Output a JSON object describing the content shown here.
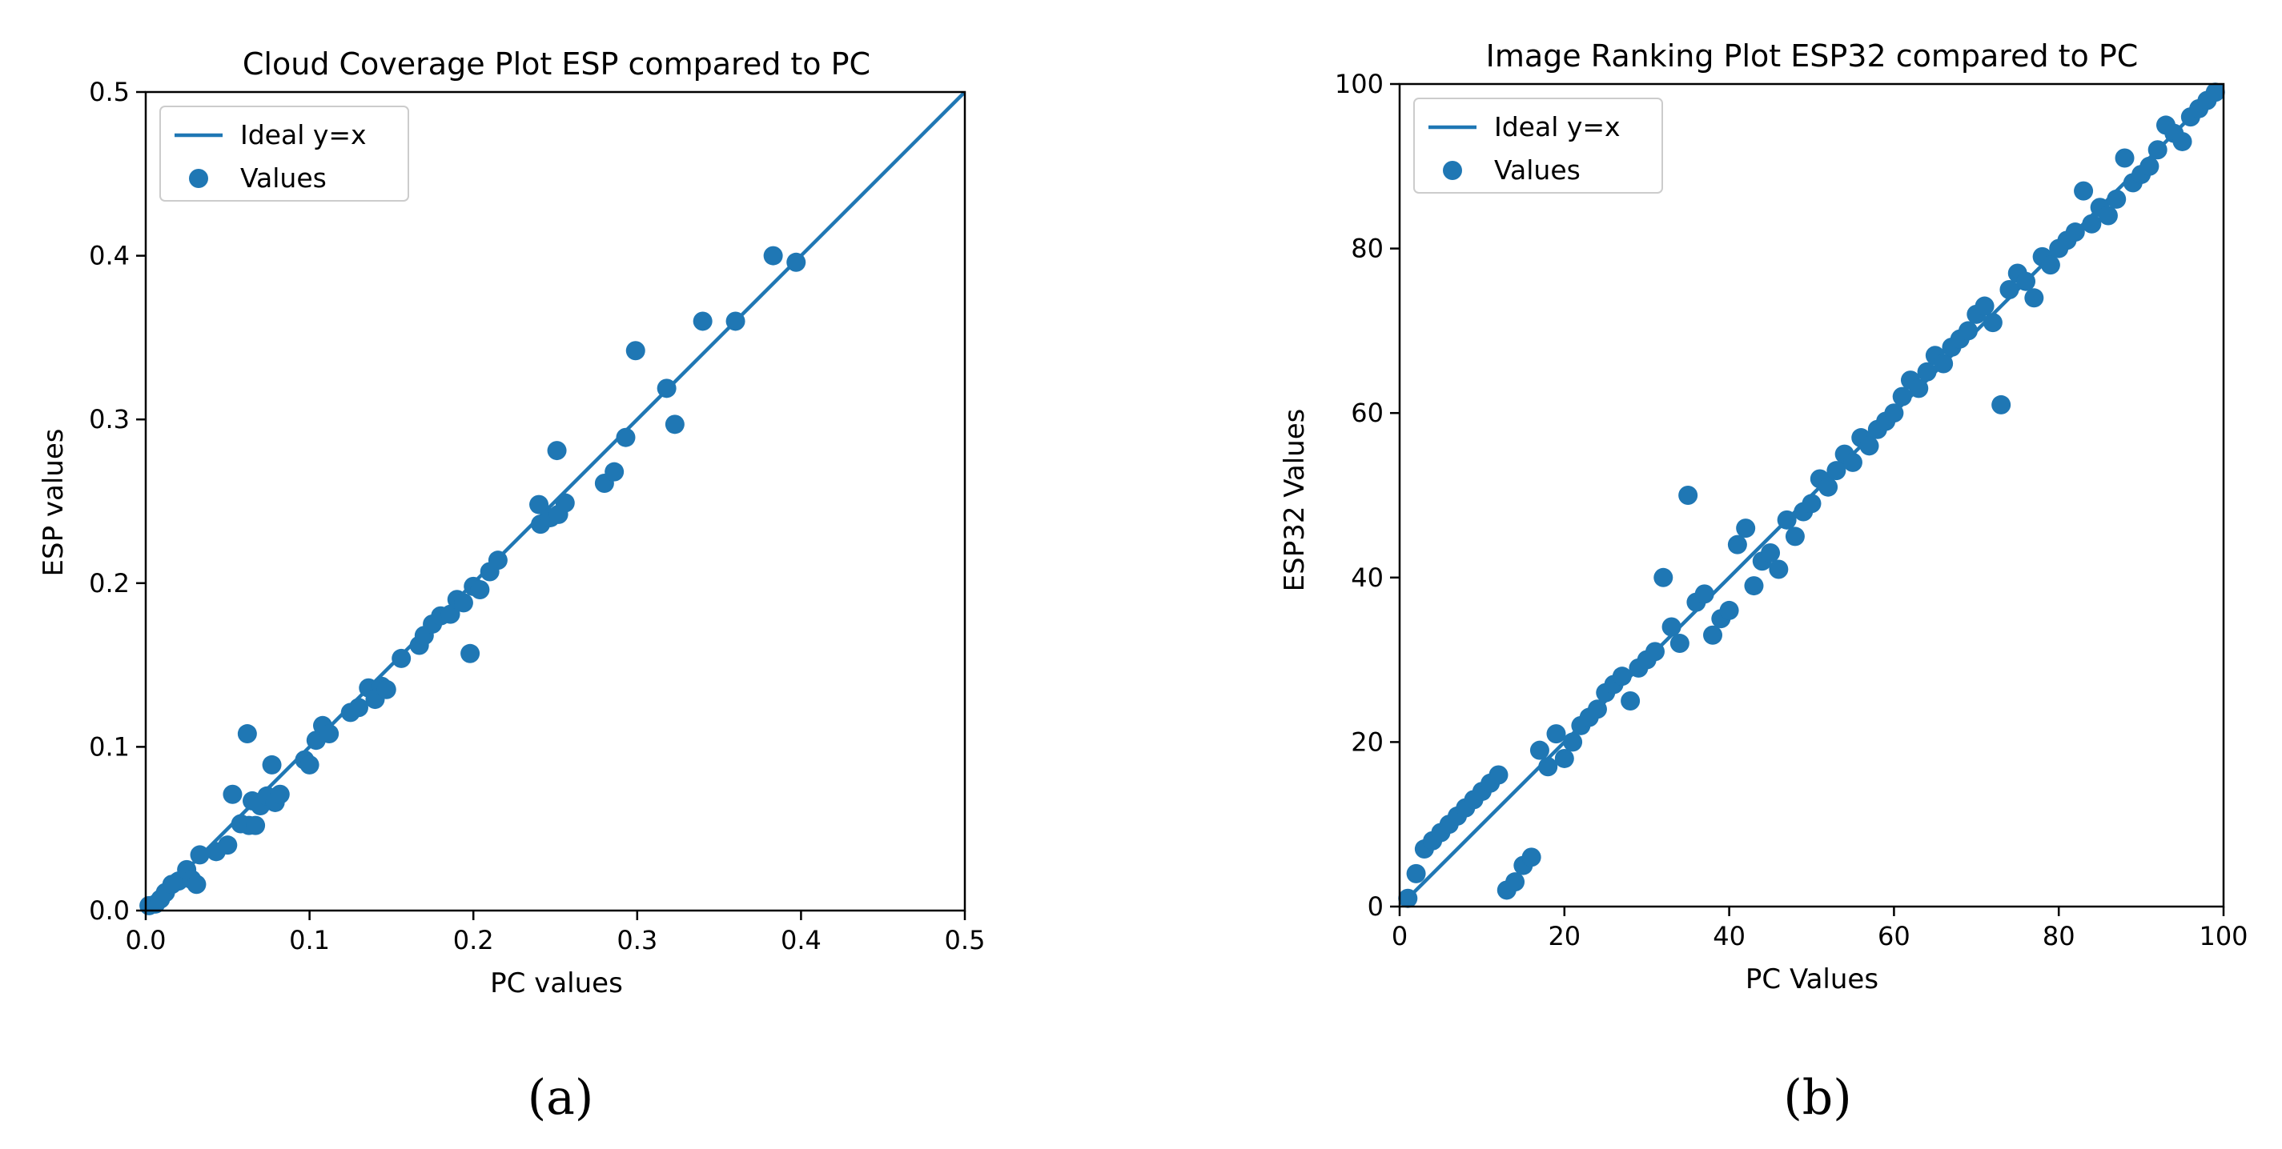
{
  "colors": {
    "series": "#1f77b4",
    "axis": "#000000",
    "legend_border": "#cccccc"
  },
  "chart_data": [
    {
      "type": "scatter",
      "panel_label": "(a)",
      "title": "Cloud Coverage Plot ESP compared to PC",
      "xlabel": "PC values",
      "ylabel": "ESP values",
      "xlim": [
        0,
        0.5
      ],
      "ylim": [
        0,
        0.5
      ],
      "xticks": [
        "0.0",
        "0.1",
        "0.2",
        "0.3",
        "0.4",
        "0.5"
      ],
      "yticks": [
        "0.0",
        "0.1",
        "0.2",
        "0.3",
        "0.4",
        "0.5"
      ],
      "legend_position": "top-left",
      "series": [
        {
          "name": "Ideal y=x",
          "kind": "line",
          "x": [
            0,
            0.5
          ],
          "y": [
            0,
            0.5
          ]
        },
        {
          "name": "Values",
          "kind": "scatter",
          "x": [
            0.002,
            0.006,
            0.009,
            0.012,
            0.016,
            0.02,
            0.025,
            0.028,
            0.031,
            0.033,
            0.043,
            0.05,
            0.053,
            0.058,
            0.062,
            0.063,
            0.065,
            0.067,
            0.07,
            0.074,
            0.077,
            0.079,
            0.082,
            0.097,
            0.1,
            0.104,
            0.108,
            0.112,
            0.125,
            0.13,
            0.136,
            0.14,
            0.144,
            0.147,
            0.156,
            0.167,
            0.17,
            0.175,
            0.18,
            0.186,
            0.19,
            0.194,
            0.198,
            0.2,
            0.204,
            0.21,
            0.215,
            0.24,
            0.241,
            0.247,
            0.251,
            0.252,
            0.256,
            0.28,
            0.286,
            0.293,
            0.299,
            0.318,
            0.323,
            0.34,
            0.36,
            0.383,
            0.397
          ],
          "y": [
            0.003,
            0.004,
            0.007,
            0.011,
            0.016,
            0.018,
            0.025,
            0.019,
            0.016,
            0.034,
            0.036,
            0.04,
            0.071,
            0.053,
            0.108,
            0.052,
            0.067,
            0.052,
            0.064,
            0.07,
            0.089,
            0.066,
            0.071,
            0.092,
            0.089,
            0.104,
            0.113,
            0.108,
            0.121,
            0.124,
            0.136,
            0.129,
            0.137,
            0.135,
            0.154,
            0.162,
            0.168,
            0.175,
            0.18,
            0.181,
            0.19,
            0.188,
            0.157,
            0.198,
            0.196,
            0.207,
            0.214,
            0.248,
            0.236,
            0.24,
            0.281,
            0.242,
            0.249,
            0.261,
            0.268,
            0.289,
            0.342,
            0.319,
            0.297,
            0.36,
            0.36,
            0.4,
            0.396
          ]
        }
      ]
    },
    {
      "type": "scatter",
      "panel_label": "(b)",
      "title": "Image Ranking Plot ESP32 compared to PC",
      "xlabel": "PC Values",
      "ylabel": "ESP32 Values",
      "xlim": [
        0,
        100
      ],
      "ylim": [
        0,
        100
      ],
      "xticks": [
        "0",
        "20",
        "40",
        "60",
        "80",
        "100"
      ],
      "yticks": [
        "0",
        "20",
        "40",
        "60",
        "80",
        "100"
      ],
      "legend_position": "top-left",
      "series": [
        {
          "name": "Ideal y=x",
          "kind": "line",
          "x": [
            1,
            100
          ],
          "y": [
            1,
            100
          ]
        },
        {
          "name": "Values",
          "kind": "scatter",
          "x": [
            1,
            2,
            3,
            4,
            5,
            6,
            7,
            8,
            9,
            10,
            11,
            12,
            13,
            14,
            15,
            16,
            17,
            18,
            19,
            20,
            21,
            22,
            23,
            24,
            25,
            26,
            27,
            28,
            29,
            30,
            31,
            32,
            33,
            34,
            35,
            36,
            37,
            38,
            39,
            40,
            41,
            42,
            43,
            44,
            45,
            46,
            47,
            48,
            49,
            50,
            51,
            52,
            53,
            54,
            55,
            56,
            57,
            58,
            59,
            60,
            61,
            62,
            63,
            64,
            65,
            66,
            67,
            68,
            69,
            70,
            71,
            72,
            73,
            74,
            75,
            76,
            77,
            78,
            79,
            80,
            81,
            82,
            83,
            84,
            85,
            86,
            87,
            88,
            89,
            90,
            91,
            92,
            93,
            94,
            95,
            96,
            97,
            98,
            99
          ],
          "y": [
            1,
            4,
            7,
            8,
            9,
            10,
            11,
            12,
            13,
            14,
            15,
            16,
            2,
            3,
            5,
            6,
            19,
            17,
            21,
            18,
            20,
            22,
            23,
            24,
            26,
            27,
            28,
            25,
            29,
            30,
            31,
            40,
            34,
            32,
            50,
            37,
            38,
            33,
            35,
            36,
            44,
            46,
            39,
            42,
            43,
            41,
            47,
            45,
            48,
            49,
            52,
            51,
            53,
            55,
            54,
            57,
            56,
            58,
            59,
            60,
            62,
            64,
            63,
            65,
            67,
            66,
            68,
            69,
            70,
            72,
            73,
            71,
            61,
            75,
            77,
            76,
            74,
            79,
            78,
            80,
            81,
            82,
            87,
            83,
            85,
            84,
            86,
            91,
            88,
            89,
            90,
            92,
            95,
            94,
            93,
            96,
            97,
            98,
            99
          ]
        }
      ]
    }
  ]
}
